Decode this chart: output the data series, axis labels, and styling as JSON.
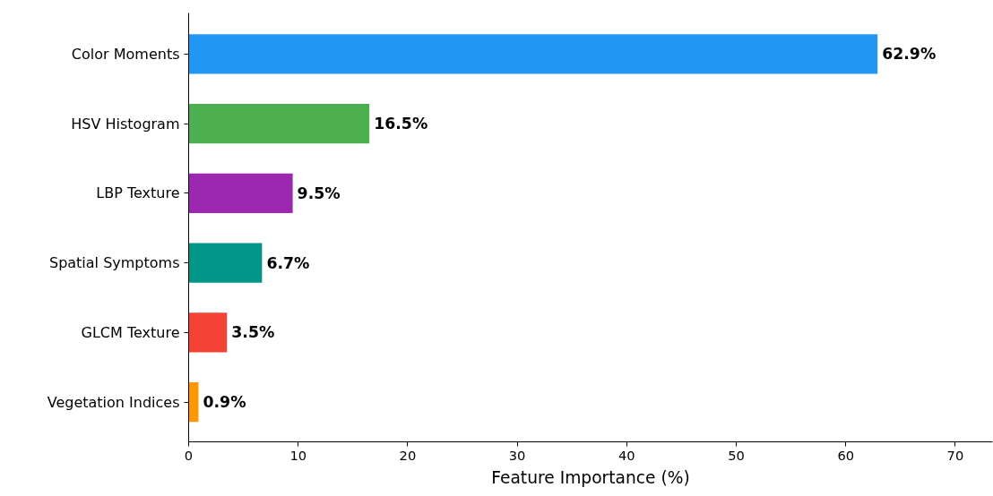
{
  "chart_data": {
    "type": "bar",
    "orientation": "horizontal",
    "xlabel": "Feature Importance (%)",
    "categories": [
      "Color Moments",
      "HSV Histogram",
      "LBP Texture",
      "Spatial Symptoms",
      "GLCM Texture",
      "Vegetation Indices"
    ],
    "values": [
      62.9,
      16.5,
      9.5,
      6.7,
      3.5,
      0.9
    ],
    "colors": [
      "#2196f3",
      "#4caf50",
      "#9c27b0",
      "#009688",
      "#f44336",
      "#ff9800"
    ],
    "value_labels": [
      "62.9%",
      "16.5%",
      "9.5%",
      "6.7%",
      "3.5%",
      "0.9%"
    ],
    "xlim": [
      0,
      73.4
    ],
    "xticks": [
      0,
      10,
      20,
      30,
      40,
      50,
      60,
      70
    ],
    "grid": false
  }
}
